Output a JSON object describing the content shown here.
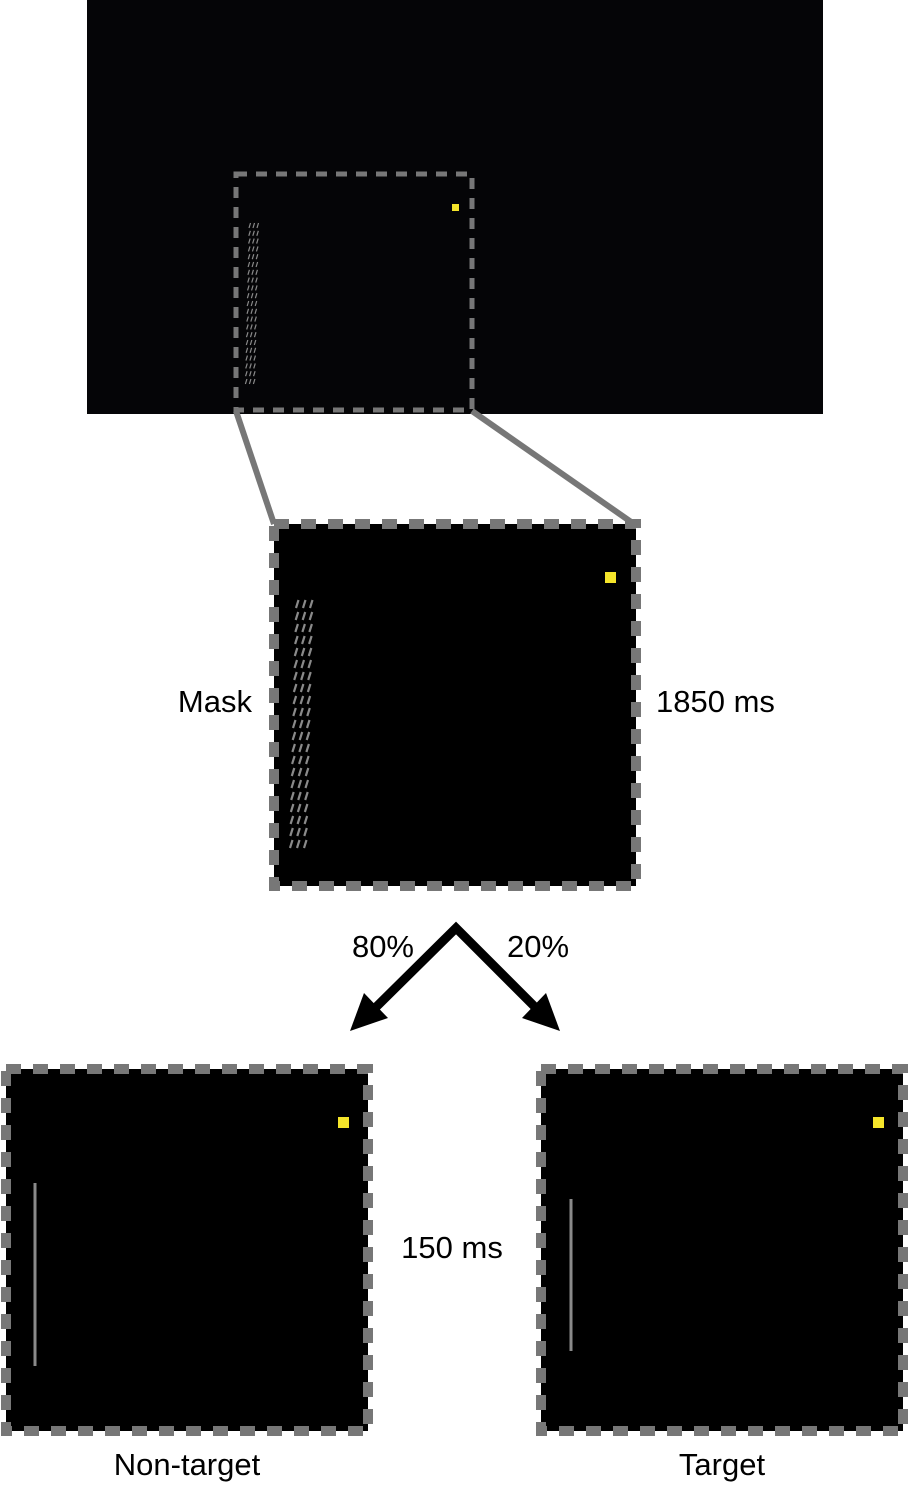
{
  "labels": {
    "mask": "Mask",
    "mask_duration": "1850 ms",
    "split_left_pct": "80%",
    "split_right_pct": "20%",
    "stimulus_duration": "150 ms",
    "non_target": "Non-target",
    "target": "Target"
  },
  "colors": {
    "screen_bg": "#050507",
    "panel_bg": "#000000",
    "dash_border": "#777777",
    "connector": "#777777",
    "fixation": "#f5e52a",
    "mask_lines": "#8a8a8a",
    "stimulus_line": "#8a8a8a",
    "arrow": "#000000"
  },
  "split": {
    "non_target_probability": 80,
    "target_probability": 20
  },
  "durations_ms": {
    "mask": 1850,
    "stimulus": 150
  },
  "icons": {
    "fixation": "fixation-square-icon",
    "mask": "mask-line-pattern",
    "stimulus": "vertical-line-stimulus",
    "arrow": "branch-arrow"
  }
}
